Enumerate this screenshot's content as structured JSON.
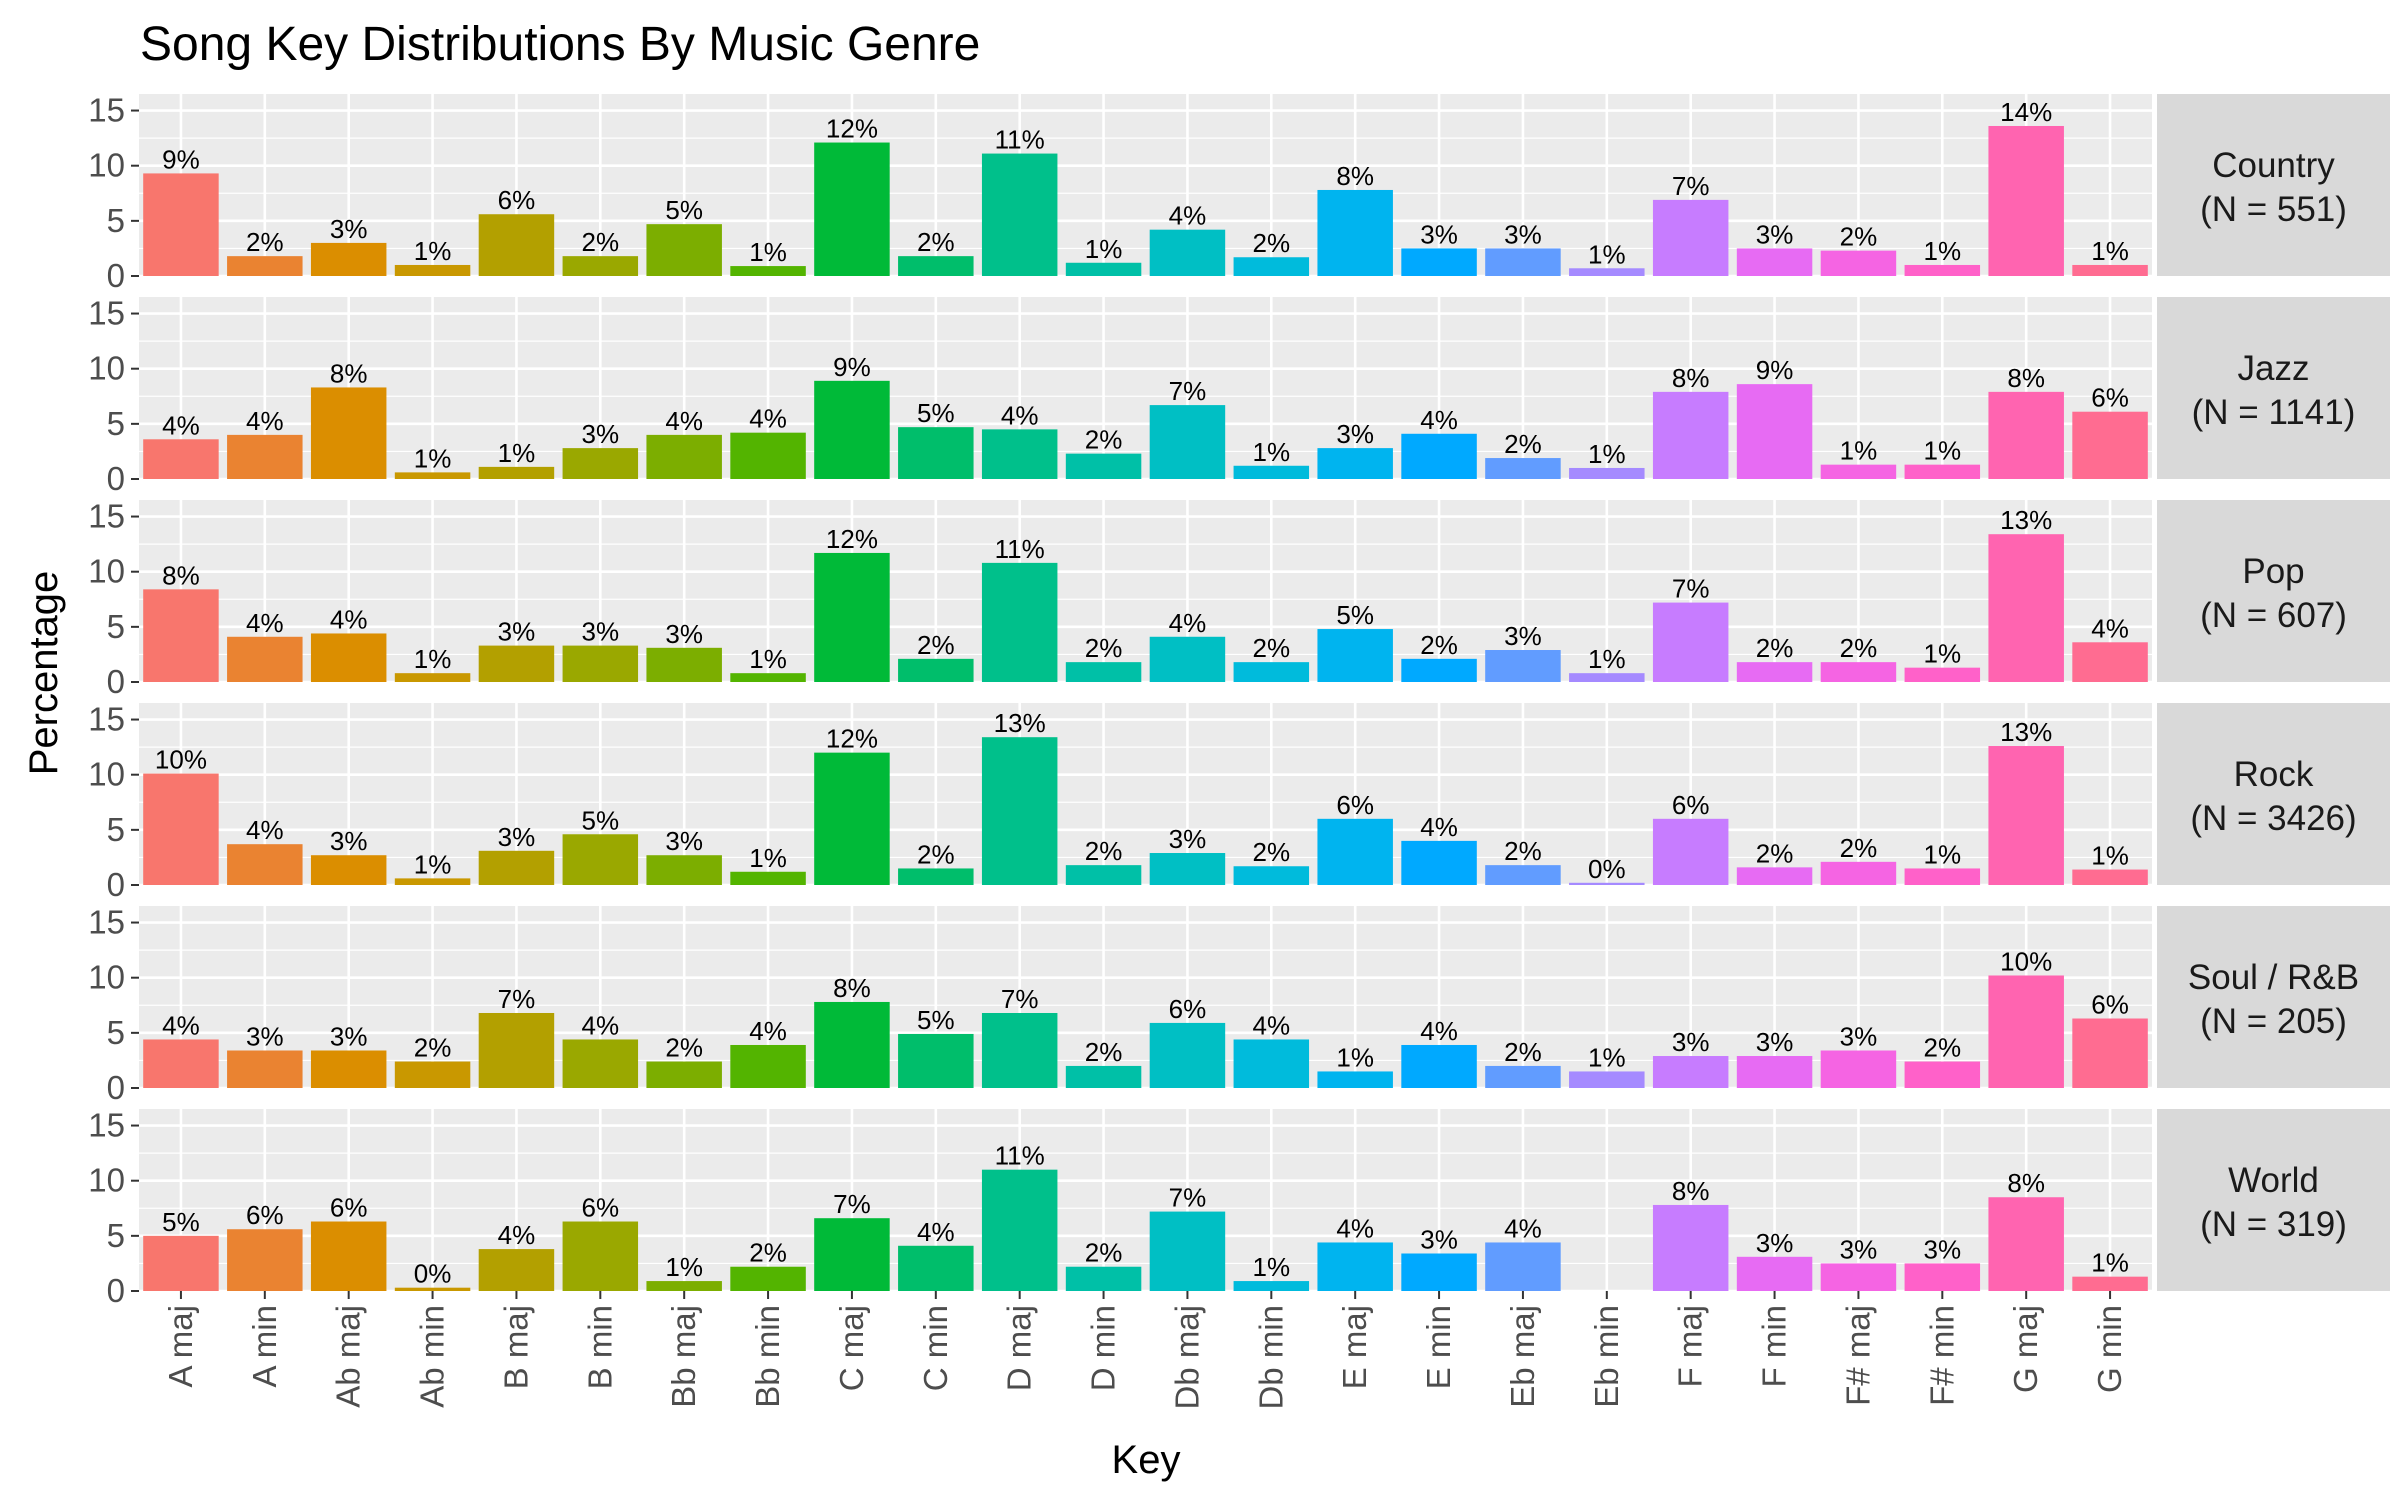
{
  "chart_data": {
    "type": "bar",
    "title": "Song Key Distributions By Music Genre",
    "xlabel": "Key",
    "ylabel": "Percentage",
    "ylim": [
      0,
      16.5
    ],
    "yticks": [
      0,
      5,
      10,
      15
    ],
    "grid": true,
    "legend": "none",
    "facet": "rows",
    "categories": [
      "A maj",
      "A min",
      "Ab maj",
      "Ab min",
      "B maj",
      "B min",
      "Bb maj",
      "Bb min",
      "C maj",
      "C min",
      "D maj",
      "D min",
      "Db maj",
      "Db min",
      "E maj",
      "E min",
      "Eb maj",
      "Eb min",
      "F maj",
      "F min",
      "F# maj",
      "F# min",
      "G maj",
      "G min"
    ],
    "colors": [
      "#F8766D",
      "#EA8331",
      "#DB8E00",
      "#C99800",
      "#B3A000",
      "#9AA800",
      "#7CAE00",
      "#53B400",
      "#00BA38",
      "#00BE6B",
      "#00C08B",
      "#00C0A7",
      "#00BFC4",
      "#00BBDC",
      "#00B4EF",
      "#00A9FF",
      "#619CFF",
      "#A58AFF",
      "#C77CFF",
      "#E76BF3",
      "#F564E3",
      "#FF61C9",
      "#FF64B0",
      "#FF6C91"
    ],
    "series": [
      {
        "name": "Country",
        "strip": [
          "Country",
          "(N = 551)"
        ],
        "values": [
          9.3,
          1.8,
          3.0,
          1.0,
          5.6,
          1.8,
          4.7,
          0.9,
          12.1,
          1.8,
          11.1,
          1.2,
          4.2,
          1.7,
          7.8,
          2.5,
          2.5,
          0.7,
          6.9,
          2.5,
          2.3,
          1.0,
          13.6,
          1.0
        ],
        "labels": [
          "9%",
          "2%",
          "3%",
          "1%",
          "6%",
          "2%",
          "5%",
          "1%",
          "12%",
          "2%",
          "11%",
          "1%",
          "4%",
          "2%",
          "8%",
          "3%",
          "3%",
          "1%",
          "7%",
          "3%",
          "2%",
          "1%",
          "14%",
          "1%"
        ]
      },
      {
        "name": "Jazz",
        "strip": [
          "Jazz",
          "(N = 1141)"
        ],
        "values": [
          3.6,
          4.0,
          8.3,
          0.6,
          1.1,
          2.8,
          4.0,
          4.2,
          8.9,
          4.7,
          4.5,
          2.3,
          6.7,
          1.2,
          2.8,
          4.1,
          1.9,
          1.0,
          7.9,
          8.6,
          1.3,
          1.3,
          7.9,
          6.1
        ],
        "labels": [
          "4%",
          "4%",
          "8%",
          "1%",
          "1%",
          "3%",
          "4%",
          "4%",
          "9%",
          "5%",
          "4%",
          "2%",
          "7%",
          "1%",
          "3%",
          "4%",
          "2%",
          "1%",
          "8%",
          "9%",
          "1%",
          "1%",
          "8%",
          "6%"
        ]
      },
      {
        "name": "Pop",
        "strip": [
          "Pop",
          "(N = 607)"
        ],
        "values": [
          8.4,
          4.1,
          4.4,
          0.8,
          3.3,
          3.3,
          3.1,
          0.8,
          11.7,
          2.1,
          10.8,
          1.8,
          4.1,
          1.8,
          4.8,
          2.1,
          2.9,
          0.8,
          7.2,
          1.8,
          1.8,
          1.3,
          13.4,
          3.6
        ],
        "labels": [
          "8%",
          "4%",
          "4%",
          "1%",
          "3%",
          "3%",
          "3%",
          "1%",
          "12%",
          "2%",
          "11%",
          "2%",
          "4%",
          "2%",
          "5%",
          "2%",
          "3%",
          "1%",
          "7%",
          "2%",
          "2%",
          "1%",
          "13%",
          "4%"
        ]
      },
      {
        "name": "Rock",
        "strip": [
          "Rock",
          "(N = 3426)"
        ],
        "values": [
          10.1,
          3.7,
          2.7,
          0.6,
          3.1,
          4.6,
          2.7,
          1.2,
          12.0,
          1.5,
          13.4,
          1.8,
          2.9,
          1.7,
          6.0,
          4.0,
          1.8,
          0.2,
          6.0,
          1.6,
          2.1,
          1.5,
          12.6,
          1.4
        ],
        "labels": [
          "10%",
          "4%",
          "3%",
          "1%",
          "3%",
          "5%",
          "3%",
          "1%",
          "12%",
          "2%",
          "13%",
          "2%",
          "3%",
          "2%",
          "6%",
          "4%",
          "2%",
          "0%",
          "6%",
          "2%",
          "2%",
          "1%",
          "13%",
          "1%"
        ]
      },
      {
        "name": "Soul / R&B",
        "strip": [
          "Soul / R&B",
          "(N = 205)"
        ],
        "values": [
          4.4,
          3.4,
          3.4,
          2.4,
          6.8,
          4.4,
          2.4,
          3.9,
          7.8,
          4.9,
          6.8,
          2.0,
          5.9,
          4.4,
          1.5,
          3.9,
          2.0,
          1.5,
          2.9,
          2.9,
          3.4,
          2.4,
          10.2,
          6.3
        ],
        "labels": [
          "4%",
          "3%",
          "3%",
          "2%",
          "7%",
          "4%",
          "2%",
          "4%",
          "8%",
          "5%",
          "7%",
          "2%",
          "6%",
          "4%",
          "1%",
          "4%",
          "2%",
          "1%",
          "3%",
          "3%",
          "3%",
          "2%",
          "10%",
          "6%"
        ]
      },
      {
        "name": "World",
        "strip": [
          "World",
          "(N = 319)"
        ],
        "values": [
          5.0,
          5.6,
          6.3,
          0.3,
          3.8,
          6.3,
          0.9,
          2.2,
          6.6,
          4.1,
          11.0,
          2.2,
          7.2,
          0.9,
          4.4,
          3.4,
          4.4,
          0.0,
          7.8,
          3.1,
          2.5,
          2.5,
          8.5,
          1.3
        ],
        "labels": [
          "5%",
          "6%",
          "6%",
          "0%",
          "4%",
          "6%",
          "1%",
          "2%",
          "7%",
          "4%",
          "11%",
          "2%",
          "7%",
          "1%",
          "4%",
          "3%",
          "4%",
          "",
          "8%",
          "3%",
          "3%",
          "3%",
          "8%",
          "1%"
        ]
      }
    ]
  }
}
